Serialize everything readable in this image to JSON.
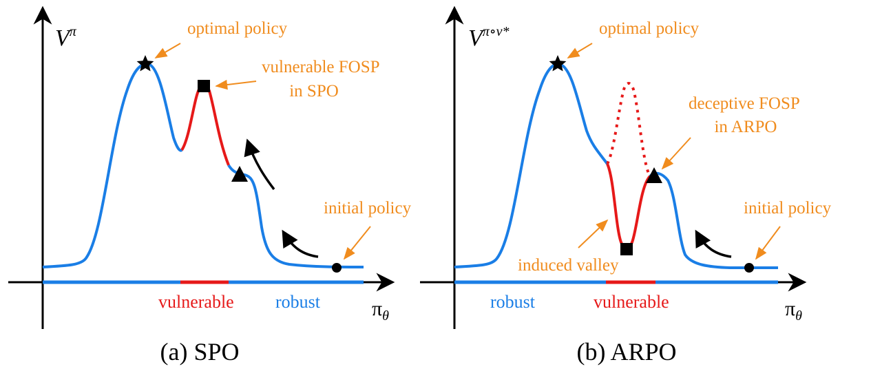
{
  "colors": {
    "curve": "#1a7ee6",
    "vulnerable": "#e61919",
    "annotation": "#f08c1e",
    "axis": "#000000"
  },
  "panel_a": {
    "y_axis_label": "V",
    "y_axis_sup": "π",
    "x_axis_label": "π",
    "x_axis_sub": "θ",
    "annotations": {
      "optimal": "optimal policy",
      "vulnerable_line1": "vulnerable FOSP",
      "vulnerable_line2": "in SPO",
      "initial": "initial policy"
    },
    "region_labels": {
      "vulnerable": "vulnerable",
      "robust": "robust"
    },
    "caption": "(a) SPO"
  },
  "panel_b": {
    "y_axis_label": "V",
    "y_axis_sup": "π∘ν*",
    "x_axis_label": "π",
    "x_axis_sub": "θ",
    "annotations": {
      "optimal": "optimal policy",
      "deceptive_line1": "deceptive FOSP",
      "deceptive_line2": "in ARPO",
      "initial": "initial policy",
      "valley": "induced valley"
    },
    "region_labels": {
      "robust": "robust",
      "vulnerable": "vulnerable"
    },
    "caption": "(b) ARPO"
  },
  "markers": [
    "star-icon",
    "square-icon",
    "triangle-icon",
    "circle-icon"
  ]
}
